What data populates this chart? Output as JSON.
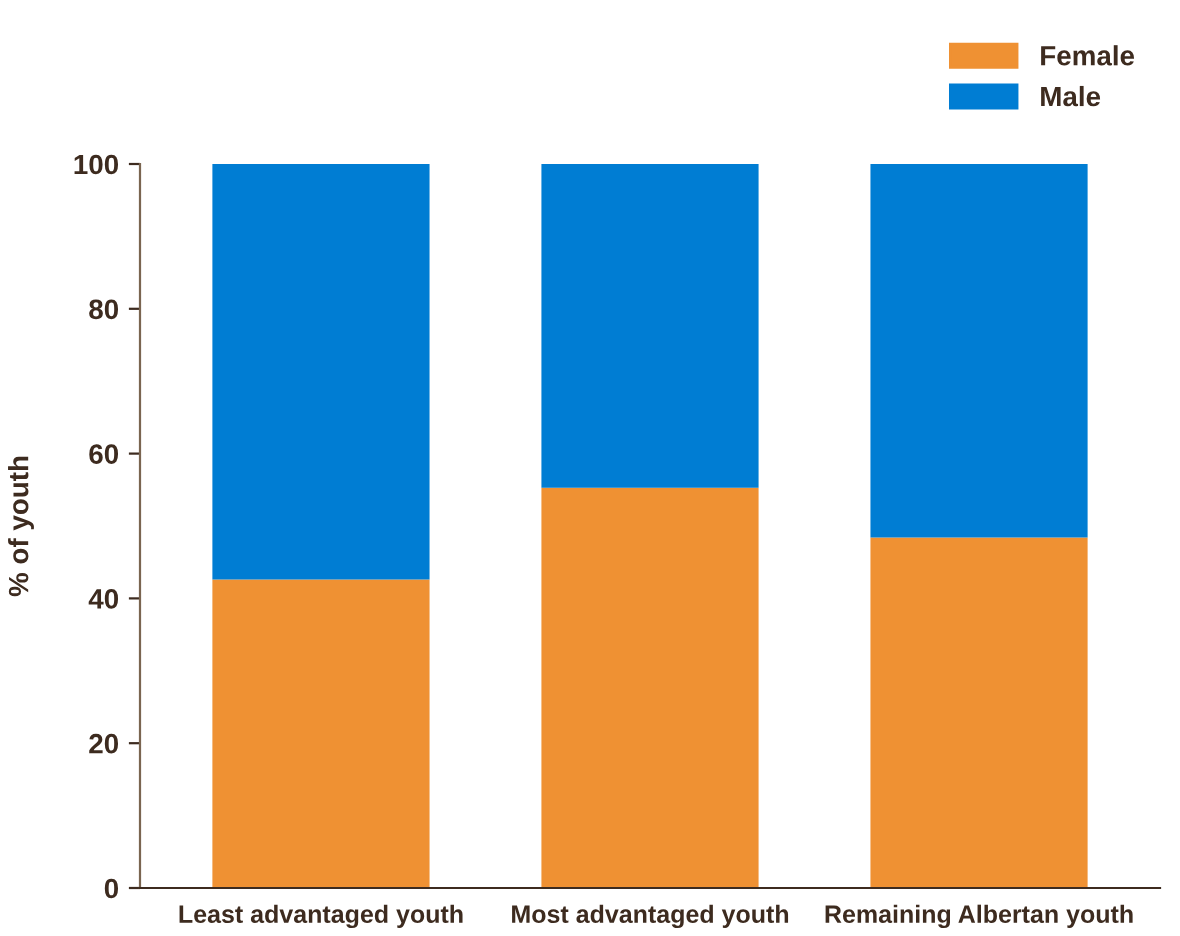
{
  "chart_data": {
    "type": "bar",
    "stacked": true,
    "ylabel": "% of youth",
    "categories": [
      "Least advantaged youth",
      "Most advantaged youth",
      "Remaining Albertan youth"
    ],
    "series": [
      {
        "name": "Female",
        "color": "#ef9133",
        "values": [
          42.6,
          55.3,
          48.4
        ]
      },
      {
        "name": "Male",
        "color": "#007dd3",
        "values": [
          57.4,
          44.7,
          51.6
        ]
      }
    ],
    "ylim": [
      0,
      100
    ],
    "yticks": [
      0,
      20,
      40,
      60,
      80,
      100
    ],
    "grid": false,
    "legend": "top right"
  }
}
